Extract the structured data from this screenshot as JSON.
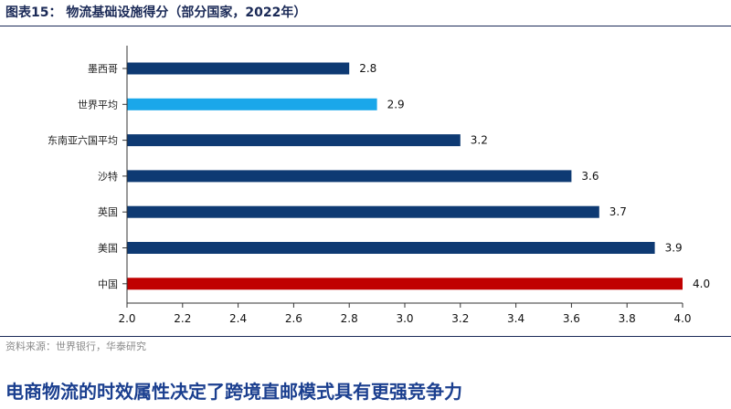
{
  "figure_title": "图表15：  物流基础设施得分（部分国家，2022年）",
  "source": "资料来源：世界银行，华泰研究",
  "headline": "电商物流的时效属性决定了跨境直邮模式具有更强竞争力",
  "colors": {
    "default": "#0e3a73",
    "world": "#1aa7ea",
    "china": "#c00000"
  },
  "chart_data": {
    "type": "bar",
    "orientation": "horizontal",
    "title": "",
    "xlabel": "",
    "ylabel": "",
    "xlim": [
      2.0,
      4.0
    ],
    "xticks": [
      "2.0",
      "2.2",
      "2.4",
      "2.6",
      "2.8",
      "3.0",
      "3.2",
      "3.4",
      "3.6",
      "3.8",
      "4.0"
    ],
    "grid": false,
    "legend": "none",
    "categories": [
      "墨西哥",
      "世界平均",
      "东南亚六国平均",
      "沙特",
      "英国",
      "美国",
      "中国"
    ],
    "values": [
      2.8,
      2.9,
      3.2,
      3.6,
      3.7,
      3.9,
      4.0
    ],
    "value_labels": [
      "2.8",
      "2.9",
      "3.2",
      "3.6",
      "3.7",
      "3.9",
      "4.0"
    ],
    "bar_colors": [
      "#0e3a73",
      "#1aa7ea",
      "#0e3a73",
      "#0e3a73",
      "#0e3a73",
      "#0e3a73",
      "#c00000"
    ]
  }
}
